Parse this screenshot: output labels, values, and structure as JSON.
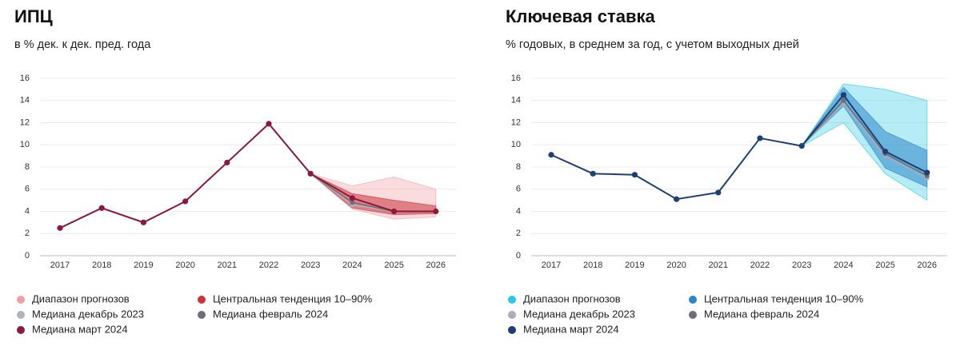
{
  "chart_data": [
    {
      "type": "line",
      "title": "ИПЦ",
      "subtitle": "в % дек. к дек. пред. года",
      "categories": [
        "2017",
        "2018",
        "2019",
        "2020",
        "2021",
        "2022",
        "2023",
        "2024",
        "2025",
        "2026"
      ],
      "ylim": [
        0,
        16
      ],
      "yticks": [
        0,
        2,
        4,
        6,
        8,
        10,
        12,
        14,
        16
      ],
      "grid": true,
      "bands": [
        {
          "name": "Диапазон прогнозов",
          "color": "#f29ca3",
          "low": [
            null,
            null,
            null,
            null,
            null,
            null,
            7.4,
            4.2,
            3.3,
            3.5
          ],
          "high": [
            null,
            null,
            null,
            null,
            null,
            null,
            7.4,
            6.3,
            7.1,
            6.0
          ]
        },
        {
          "name": "Центральная тенденция 10–90%",
          "color": "#c8333c",
          "low": [
            null,
            null,
            null,
            null,
            null,
            null,
            7.4,
            4.3,
            3.7,
            3.8
          ],
          "high": [
            null,
            null,
            null,
            null,
            null,
            null,
            7.4,
            5.6,
            5.0,
            4.5
          ]
        }
      ],
      "series": [
        {
          "name": "Медиана декабрь 2023",
          "color": "#b0b3bb",
          "values": [
            null,
            null,
            null,
            null,
            null,
            null,
            7.4,
            4.6,
            4.0,
            4.0
          ]
        },
        {
          "name": "Медиана февраль 2024",
          "color": "#6b6e78",
          "values": [
            null,
            null,
            null,
            null,
            null,
            null,
            7.4,
            4.8,
            4.0,
            4.0
          ]
        },
        {
          "name": "Медиана март 2024",
          "color": "#8b1a3a",
          "values": [
            2.5,
            4.3,
            3.0,
            4.9,
            8.4,
            11.9,
            7.4,
            5.2,
            4.0,
            4.0
          ]
        }
      ]
    },
    {
      "type": "line",
      "title": "Ключевая ставка",
      "subtitle": "% годовых, в среднем за год, с учетом выходных дней",
      "categories": [
        "2017",
        "2018",
        "2019",
        "2020",
        "2021",
        "2022",
        "2023",
        "2024",
        "2025",
        "2026"
      ],
      "ylim": [
        0,
        16
      ],
      "yticks": [
        0,
        2,
        4,
        6,
        8,
        10,
        12,
        14,
        16
      ],
      "grid": true,
      "bands": [
        {
          "name": "Диапазон прогнозов",
          "color": "#2ac8e6",
          "low": [
            null,
            null,
            null,
            null,
            null,
            null,
            9.9,
            12.0,
            7.4,
            5.0
          ],
          "high": [
            null,
            null,
            null,
            null,
            null,
            null,
            9.9,
            15.5,
            15.0,
            14.0
          ]
        },
        {
          "name": "Центральная тенденция 10–90%",
          "color": "#2b86c8",
          "low": [
            null,
            null,
            null,
            null,
            null,
            null,
            9.9,
            13.5,
            7.9,
            6.2
          ],
          "high": [
            null,
            null,
            null,
            null,
            null,
            null,
            9.9,
            15.2,
            11.2,
            9.5
          ]
        }
      ],
      "series": [
        {
          "name": "Медиана декабрь 2023",
          "color": "#a8aebb",
          "values": [
            null,
            null,
            null,
            null,
            null,
            null,
            9.9,
            13.7,
            9.0,
            7.0
          ]
        },
        {
          "name": "Медиана февраль 2024",
          "color": "#6b6e78",
          "values": [
            null,
            null,
            null,
            null,
            null,
            null,
            9.9,
            14.0,
            9.2,
            7.2
          ]
        },
        {
          "name": "Медиана март 2024",
          "color": "#1e3f73",
          "values": [
            9.1,
            7.4,
            7.3,
            5.1,
            5.7,
            10.6,
            9.9,
            14.5,
            9.4,
            7.5
          ]
        }
      ]
    }
  ]
}
